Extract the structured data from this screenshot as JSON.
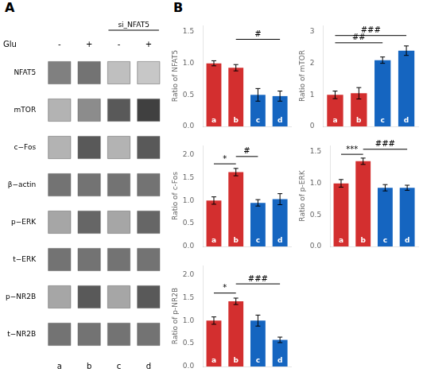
{
  "chart_data": [
    {
      "type": "heatmap",
      "title": "A",
      "categories": [
        "a",
        "b",
        "c",
        "d"
      ],
      "rows": [
        "NFAT5",
        "mTOR",
        "c−Fos",
        "β−actin",
        "p−ERK",
        "t−ERK",
        "p−NR2B",
        "t−NR2B"
      ],
      "cells": [
        [
          0.5,
          0.55,
          0.25,
          0.22
        ],
        [
          0.3,
          0.45,
          0.65,
          0.75
        ],
        [
          0.3,
          0.65,
          0.3,
          0.65
        ],
        [
          0.55,
          0.55,
          0.55,
          0.55
        ],
        [
          0.35,
          0.6,
          0.35,
          0.6
        ],
        [
          0.55,
          0.55,
          0.55,
          0.55
        ],
        [
          0.35,
          0.65,
          0.35,
          0.65
        ],
        [
          0.55,
          0.55,
          0.55,
          0.55
        ]
      ],
      "header_rows": [
        {
          "label": "Glu",
          "values": [
            "-",
            "+",
            "-",
            "+"
          ]
        }
      ],
      "annotations": [
        {
          "text": "si_NFAT5",
          "from": "c",
          "to": "d"
        }
      ],
      "grid": false
    },
    {
      "type": "bar",
      "title": "B",
      "categories": [
        "a",
        "b",
        "c",
        "d"
      ],
      "colors": [
        "#d32f2f",
        "#d32f2f",
        "#1565c0",
        "#1565c0"
      ],
      "values": [
        1.0,
        0.93,
        0.5,
        0.48
      ],
      "errors": [
        0.04,
        0.05,
        0.1,
        0.08
      ],
      "ylabel": "Ratio of NFAT5",
      "ylim": [
        0,
        1.6
      ],
      "yticks": [
        {
          "value": 0,
          "label": "0.0"
        },
        0.5,
        {
          "value": 1,
          "label": "1.0"
        },
        1.5
      ],
      "grid": false,
      "tick_labels": "y",
      "annotations": [
        {
          "text": "#",
          "from": "b",
          "to": "d",
          "y": 1.38
        }
      ]
    },
    {
      "type": "bar",
      "categories": [
        "a",
        "b",
        "c",
        "d"
      ],
      "colors": [
        "#d32f2f",
        "#d32f2f",
        "#1565c0",
        "#1565c0"
      ],
      "values": [
        1.0,
        1.05,
        2.1,
        2.4
      ],
      "errors": [
        0.12,
        0.18,
        0.1,
        0.15
      ],
      "ylabel": "Ratio of mTOR",
      "ylim": [
        0,
        3.2
      ],
      "yticks": [
        0,
        1,
        2,
        3
      ],
      "grid": false,
      "tick_labels": "y",
      "annotations": [
        {
          "text": "##",
          "from": "a",
          "to": "c",
          "y": 2.65
        },
        {
          "text": "###",
          "from": "a",
          "to": "d",
          "y": 2.88
        }
      ]
    },
    {
      "type": "bar",
      "categories": [
        "a",
        "b",
        "c",
        "d"
      ],
      "colors": [
        "#d32f2f",
        "#d32f2f",
        "#1565c0",
        "#1565c0"
      ],
      "values": [
        1.0,
        1.62,
        0.95,
        1.03
      ],
      "errors": [
        0.08,
        0.08,
        0.07,
        0.12
      ],
      "ylabel": "Ratio of c-Fos",
      "ylim": [
        0,
        2.2
      ],
      "yticks": [
        {
          "value": 0,
          "label": "0.0"
        },
        0.5,
        {
          "value": 1,
          "label": "1.0"
        },
        1.5,
        {
          "value": 2,
          "label": "2.0"
        }
      ],
      "grid": false,
      "tick_labels": "y",
      "annotations": [
        {
          "text": "*",
          "from": "a",
          "to": "b",
          "y": 1.8
        },
        {
          "text": "#",
          "from": "b",
          "to": "c",
          "y": 1.96
        }
      ]
    },
    {
      "type": "bar",
      "categories": [
        "a",
        "b",
        "c",
        "d"
      ],
      "colors": [
        "#d32f2f",
        "#d32f2f",
        "#1565c0",
        "#1565c0"
      ],
      "values": [
        1.0,
        1.35,
        0.93,
        0.93
      ],
      "errors": [
        0.06,
        0.05,
        0.05,
        0.04
      ],
      "ylabel": "Ratio of p-ERK",
      "ylim": [
        0,
        1.6
      ],
      "yticks": [
        {
          "value": 0,
          "label": "0.0"
        },
        0.5,
        {
          "value": 1,
          "label": "1.0"
        },
        1.5
      ],
      "grid": false,
      "tick_labels": "y",
      "annotations": [
        {
          "text": "***",
          "from": "a",
          "to": "b",
          "y": 1.46
        },
        {
          "text": "###",
          "from": "b",
          "to": "d",
          "y": 1.54
        }
      ]
    },
    {
      "type": "bar",
      "categories": [
        "a",
        "b",
        "c",
        "d"
      ],
      "colors": [
        "#d32f2f",
        "#d32f2f",
        "#1565c0",
        "#1565c0"
      ],
      "values": [
        1.0,
        1.42,
        1.0,
        0.58
      ],
      "errors": [
        0.08,
        0.07,
        0.12,
        0.06
      ],
      "ylabel": "Ratio of p-NR2B",
      "ylim": [
        0,
        2.2
      ],
      "yticks": [
        {
          "value": 0,
          "label": "0.0"
        },
        0.5,
        {
          "value": 1,
          "label": "1.0"
        },
        1.5,
        {
          "value": 2,
          "label": "2.0"
        }
      ],
      "grid": false,
      "tick_labels": "y",
      "annotations": [
        {
          "text": "*",
          "from": "a",
          "to": "b",
          "y": 1.6
        },
        {
          "text": "###",
          "from": "b",
          "to": "d",
          "y": 1.8
        }
      ]
    }
  ]
}
